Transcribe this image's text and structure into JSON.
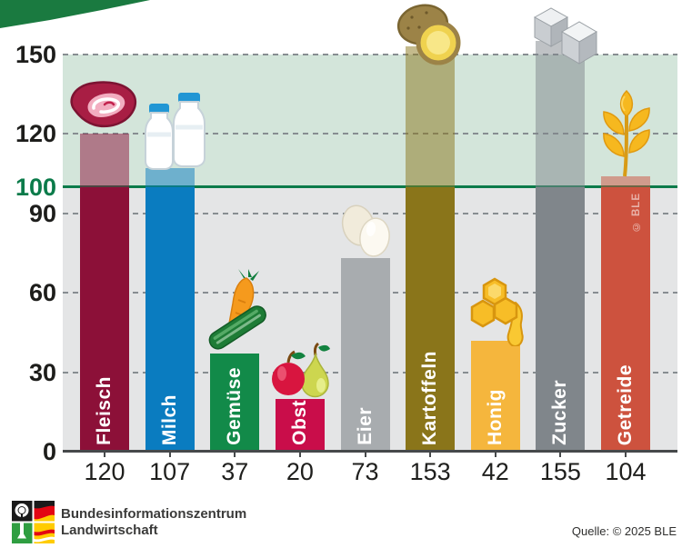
{
  "ribbon": {
    "color": "#1a7a40"
  },
  "chart_data": {
    "type": "bar",
    "title": "",
    "xlabel": "",
    "ylabel": "",
    "categories": [
      "Fleisch",
      "Milch",
      "Gemüse",
      "Obst",
      "Eier",
      "Kartoffeln",
      "Honig",
      "Zucker",
      "Getreide"
    ],
    "values": [
      120,
      107,
      37,
      20,
      73,
      153,
      42,
      155,
      104
    ],
    "bar_colors": [
      "#8c1038",
      "#0a7cc0",
      "#128a49",
      "#c90d4a",
      "#a8acaf",
      "#8a751a",
      "#f5b63d",
      "#80868b",
      "#cd523e"
    ],
    "icon_names": [
      "meat-icon",
      "milk-bottles-icon",
      "vegetables-icon",
      "fruit-icon",
      "eggs-icon",
      "potatoes-icon",
      "honeycomb-icon",
      "sugar-cubes-icon",
      "wheat-icon"
    ],
    "overflow_opacity": 0.5,
    "y_axis": {
      "ticks": [
        0,
        30,
        60,
        90,
        100,
        120,
        150
      ],
      "highlight_tick": 100,
      "highlight_color": "#0b7b4a"
    },
    "ylim": [
      0,
      170
    ],
    "gridlines": [
      30,
      60,
      90,
      120,
      150
    ],
    "grid_style": "dashed",
    "reference_line": {
      "value": 100,
      "color": "#0b7b4a"
    },
    "zones": [
      {
        "from": 100,
        "to": 150,
        "color": "#d3e5da",
        "name": "above-100"
      },
      {
        "from": 0,
        "to": 100,
        "color": "#e4e5e6",
        "name": "below-100"
      }
    ],
    "legend": null,
    "watermark": "© BLE"
  },
  "footer": {
    "org_line1": "Bundesinformationszentrum",
    "org_line2": "Landwirtschaft",
    "source": "Quelle: © 2025 BLE"
  }
}
